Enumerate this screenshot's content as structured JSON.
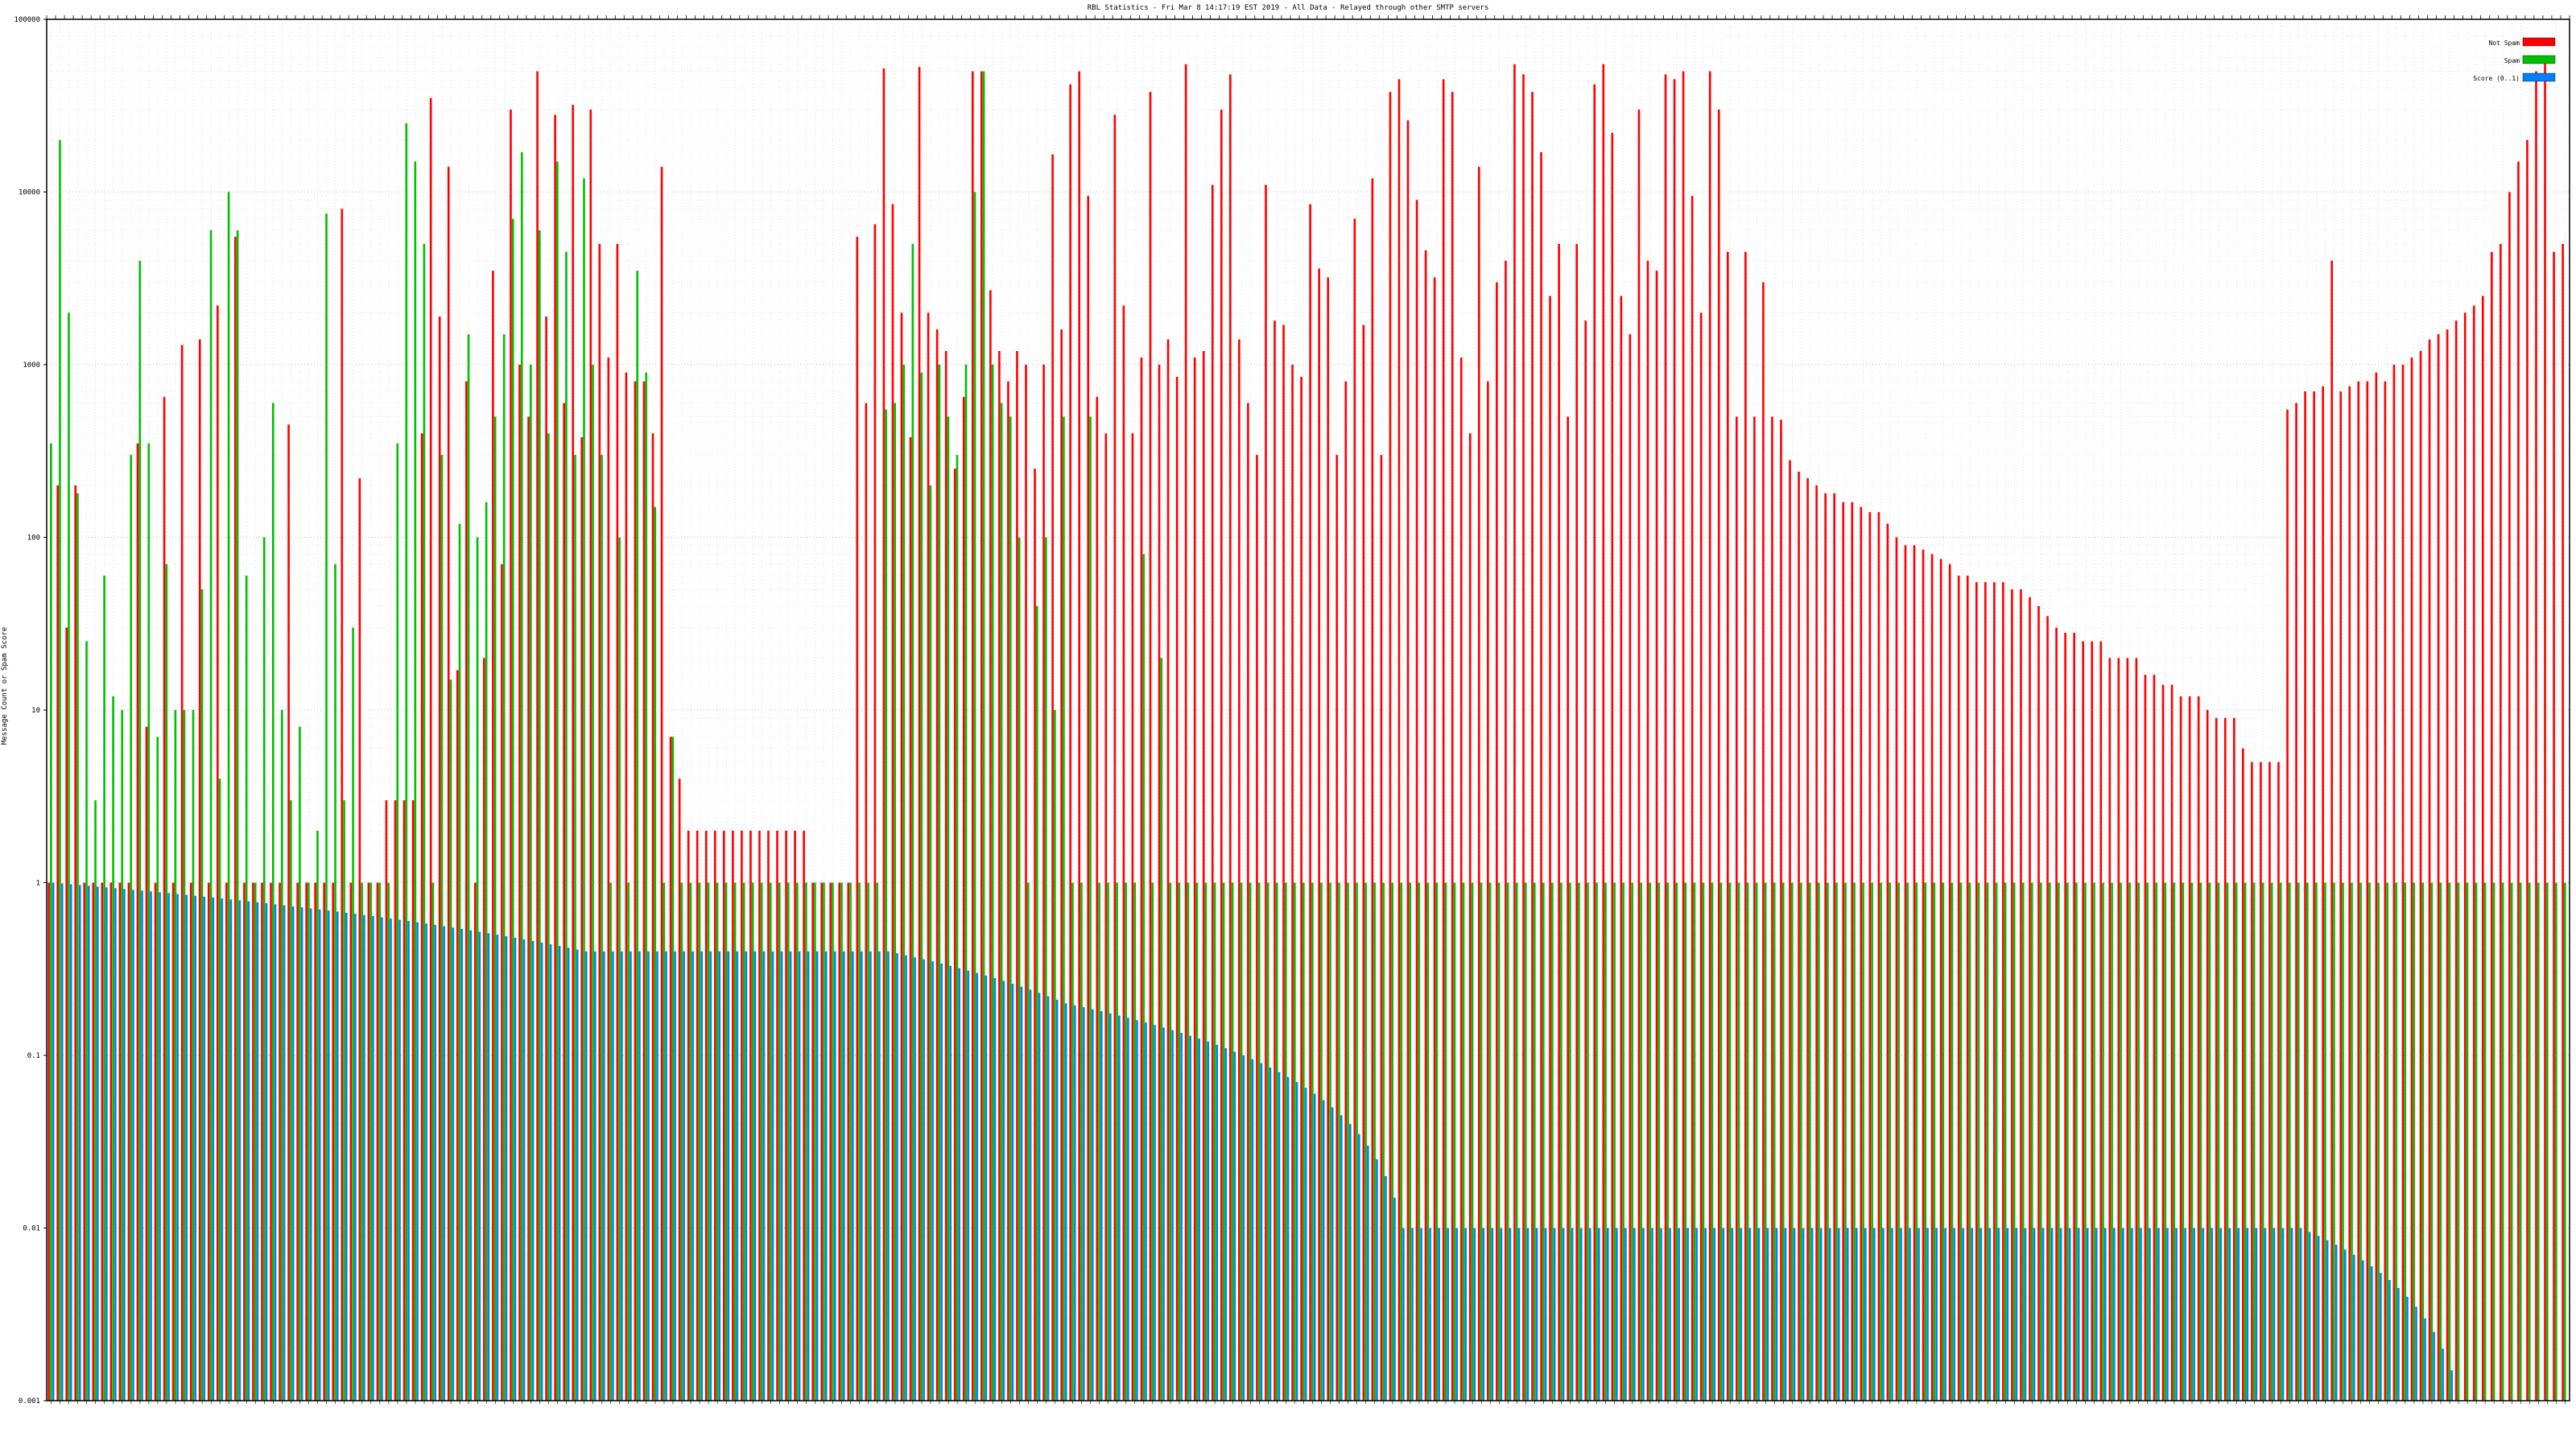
{
  "chart_data": {
    "type": "bar",
    "title": "RBL Statistics - Fri Mar  8 14:17:19 EST 2019 - All Data - Relayed through other SMTP servers",
    "ylabel": "Message Count or Spam Score",
    "xlabel": "",
    "yscale": "log",
    "ylim": [
      0.001,
      100000
    ],
    "yticks": [
      {
        "value": 0.001,
        "label": "0.001"
      },
      {
        "value": 0.01,
        "label": "0.01"
      },
      {
        "value": 0.1,
        "label": "0.1"
      },
      {
        "value": 1,
        "label": "1"
      },
      {
        "value": 10,
        "label": "10"
      },
      {
        "value": 100,
        "label": "100"
      },
      {
        "value": 1000,
        "label": "1000"
      },
      {
        "value": 10000,
        "label": "10000"
      },
      {
        "value": 100000,
        "label": "100000"
      }
    ],
    "grid": true,
    "legend": "top-right",
    "categories_note": "category labels are too small to read in the source image",
    "series": [
      {
        "name": "Not Spam",
        "color": "#ff0000",
        "values": [
          1,
          200,
          30,
          200,
          1,
          1,
          1,
          1,
          1,
          1,
          350,
          8,
          1,
          650,
          1,
          1300,
          1,
          1400,
          1,
          2200,
          1,
          5500,
          1,
          1,
          1,
          1,
          1,
          450,
          1,
          1,
          1,
          1,
          1,
          8000,
          1,
          220,
          1,
          1,
          3,
          3,
          3,
          3,
          400,
          35000,
          1900,
          14000,
          17,
          800,
          1,
          20,
          3500,
          70,
          30000,
          1000,
          500,
          50000,
          1900,
          28000,
          600,
          32000,
          380,
          30000,
          5000,
          1100,
          5000,
          900,
          800,
          800,
          400,
          14000,
          7,
          4,
          2,
          2,
          2,
          2,
          2,
          2,
          2,
          2,
          2,
          2,
          2,
          2,
          2,
          2,
          1,
          1,
          1,
          1,
          1,
          5500,
          600,
          6500,
          52000,
          8500,
          2000,
          380,
          53000,
          2000,
          1600,
          1200,
          250,
          650,
          50000,
          50000,
          2700,
          1200,
          800,
          1200,
          1000,
          250,
          1000,
          16500,
          1600,
          42000,
          50000,
          9500,
          650,
          400,
          28000,
          2200,
          400,
          1100,
          38000,
          1000,
          1400,
          850,
          55000,
          1100,
          1200,
          11000,
          30000,
          48000,
          1400,
          600,
          300,
          11000,
          1800,
          1700,
          1000,
          850,
          8500,
          3600,
          3200,
          300,
          800,
          7000,
          1700,
          12000,
          300,
          38000,
          45000,
          26000,
          9000,
          4600,
          3200,
          45000,
          38000,
          1100,
          400,
          14000,
          800,
          3000,
          4000,
          55000,
          48000,
          38000,
          17000,
          2500,
          5000,
          500,
          5000,
          1800,
          42000,
          55000,
          22000,
          2500,
          1500,
          30000,
          4000,
          3500,
          48000,
          45000,
          50000,
          9500,
          2000,
          50000,
          30000,
          4500,
          500,
          4500,
          500,
          3000,
          500,
          480,
          280,
          240,
          220,
          200,
          180,
          180,
          160,
          160,
          150,
          140,
          140,
          120,
          100,
          90,
          90,
          85,
          80,
          75,
          70,
          60,
          60,
          55,
          55,
          55,
          55,
          50,
          50,
          45,
          40,
          35,
          30,
          28,
          28,
          25,
          25,
          25,
          20,
          20,
          20,
          20,
          16,
          16,
          14,
          14,
          12,
          12,
          12,
          10,
          9,
          9,
          9,
          6,
          5,
          5,
          5,
          5,
          550,
          600,
          700,
          700,
          750,
          4000,
          700,
          750,
          800,
          800,
          900,
          800,
          1000,
          1000,
          1100,
          1200,
          1400,
          1500,
          1600,
          1800,
          2000,
          2200,
          2500,
          4500,
          5000,
          10000,
          15000,
          20000,
          50000,
          60000,
          4500,
          5000
        ]
      },
      {
        "name": "Spam",
        "color": "#00c000",
        "values": [
          350,
          20000,
          2000,
          180,
          25,
          3,
          60,
          12,
          10,
          300,
          4000,
          350,
          7,
          70,
          10,
          10,
          10,
          50,
          6000,
          4,
          10000,
          6000,
          60,
          1,
          100,
          600,
          10,
          3,
          8,
          1,
          2,
          7500,
          70,
          3,
          30,
          1,
          1,
          1,
          1,
          350,
          25000,
          15000,
          5000,
          1,
          300,
          15,
          120,
          1500,
          100,
          160,
          500,
          1500,
          7000,
          17000,
          1000,
          6000,
          400,
          15000,
          4500,
          300,
          12000,
          1000,
          300,
          1,
          100,
          1,
          3500,
          900,
          150,
          1,
          7,
          1,
          1,
          1,
          1,
          1,
          1,
          1,
          1,
          1,
          1,
          1,
          1,
          1,
          1,
          1,
          1,
          1,
          1,
          1,
          1,
          1,
          1,
          1,
          550,
          600,
          1000,
          5000,
          900,
          200,
          1000,
          500,
          300,
          1000,
          10000,
          50000,
          1000,
          600,
          500,
          100,
          1,
          40,
          100,
          10,
          500,
          1,
          1,
          500,
          1,
          1,
          1,
          1,
          1,
          80,
          1,
          20,
          1,
          1,
          1,
          1,
          1,
          1,
          1,
          1,
          1,
          1,
          1,
          1,
          1,
          1,
          1,
          1,
          1,
          1,
          1,
          1,
          1,
          1,
          1,
          1,
          1,
          1,
          1,
          1,
          1,
          1,
          1,
          1,
          1,
          1,
          1,
          1,
          1,
          1,
          1,
          1,
          1,
          1,
          1,
          1,
          1,
          1,
          1,
          1,
          1,
          1,
          1,
          1,
          1,
          1,
          1,
          1,
          1,
          1,
          1,
          1,
          1,
          1,
          1,
          1,
          1,
          1,
          1,
          1,
          1,
          1,
          1,
          1,
          1,
          1,
          1,
          1,
          1,
          1,
          1,
          1,
          1,
          1,
          1,
          1,
          1,
          1,
          1,
          1,
          1,
          1,
          1,
          1,
          1,
          1,
          1,
          1,
          1,
          1,
          1,
          1,
          1,
          1,
          1,
          1,
          1,
          1,
          1,
          1,
          1,
          1,
          1,
          1,
          1,
          1,
          1,
          1,
          1,
          1,
          1,
          1,
          1,
          1,
          1,
          1,
          1,
          1,
          1,
          1,
          1,
          1,
          1,
          1,
          1,
          1,
          1,
          1,
          1,
          1,
          1,
          1,
          1,
          1,
          1,
          1,
          1,
          1,
          1,
          1,
          1,
          1,
          1,
          1,
          1,
          1,
          1,
          1,
          1,
          1,
          1,
          1,
          1,
          1,
          1,
          1,
          1,
          1,
          1,
          1,
          1,
          1,
          1,
          1,
          1,
          1,
          1,
          1,
          1,
          1,
          1,
          1,
          1,
          1,
          1,
          1,
          1,
          1,
          1,
          1,
          1
        ]
      },
      {
        "name": "Score (0..1)",
        "color": "#0080ff",
        "values": [
          1,
          0.99,
          0.98,
          0.97,
          0.96,
          0.95,
          0.94,
          0.93,
          0.92,
          0.91,
          0.9,
          0.89,
          0.88,
          0.87,
          0.86,
          0.85,
          0.84,
          0.83,
          0.82,
          0.81,
          0.8,
          0.79,
          0.78,
          0.77,
          0.76,
          0.75,
          0.74,
          0.73,
          0.72,
          0.71,
          0.7,
          0.69,
          0.68,
          0.67,
          0.66,
          0.65,
          0.64,
          0.63,
          0.62,
          0.61,
          0.6,
          0.59,
          0.58,
          0.57,
          0.56,
          0.55,
          0.54,
          0.53,
          0.52,
          0.51,
          0.5,
          0.49,
          0.48,
          0.47,
          0.46,
          0.45,
          0.44,
          0.43,
          0.42,
          0.41,
          0.4,
          0.4,
          0.4,
          0.4,
          0.4,
          0.4,
          0.4,
          0.4,
          0.4,
          0.4,
          0.4,
          0.4,
          0.4,
          0.4,
          0.4,
          0.4,
          0.4,
          0.4,
          0.4,
          0.4,
          0.4,
          0.4,
          0.4,
          0.4,
          0.4,
          0.4,
          0.4,
          0.4,
          0.4,
          0.4,
          0.4,
          0.4,
          0.4,
          0.4,
          0.4,
          0.39,
          0.38,
          0.37,
          0.36,
          0.35,
          0.34,
          0.33,
          0.32,
          0.31,
          0.3,
          0.29,
          0.28,
          0.27,
          0.26,
          0.25,
          0.24,
          0.23,
          0.22,
          0.21,
          0.2,
          0.195,
          0.19,
          0.185,
          0.18,
          0.175,
          0.17,
          0.165,
          0.16,
          0.155,
          0.15,
          0.145,
          0.14,
          0.135,
          0.13,
          0.125,
          0.12,
          0.115,
          0.11,
          0.105,
          0.1,
          0.095,
          0.09,
          0.085,
          0.08,
          0.075,
          0.07,
          0.065,
          0.06,
          0.055,
          0.05,
          0.045,
          0.04,
          0.035,
          0.03,
          0.025,
          0.02,
          0.015,
          0.01,
          0.01,
          0.01,
          0.01,
          0.01,
          0.01,
          0.01,
          0.01,
          0.01,
          0.01,
          0.01,
          0.01,
          0.01,
          0.01,
          0.01,
          0.01,
          0.01,
          0.01,
          0.01,
          0.01,
          0.01,
          0.01,
          0.01,
          0.01,
          0.01,
          0.01,
          0.01,
          0.01,
          0.01,
          0.01,
          0.01,
          0.01,
          0.01,
          0.01,
          0.01,
          0.01,
          0.01,
          0.01,
          0.01,
          0.01,
          0.01,
          0.01,
          0.01,
          0.01,
          0.01,
          0.01,
          0.01,
          0.01,
          0.01,
          0.01,
          0.01,
          0.01,
          0.01,
          0.01,
          0.01,
          0.01,
          0.01,
          0.01,
          0.01,
          0.01,
          0.01,
          0.01,
          0.01,
          0.01,
          0.01,
          0.01,
          0.01,
          0.01,
          0.01,
          0.01,
          0.01,
          0.01,
          0.01,
          0.01,
          0.01,
          0.01,
          0.01,
          0.01,
          0.01,
          0.01,
          0.01,
          0.01,
          0.01,
          0.01,
          0.01,
          0.01,
          0.01,
          0.01,
          0.01,
          0.01,
          0.01,
          0.01,
          0.01,
          0.01,
          0.01,
          0.01,
          0.01,
          0.01,
          0.01,
          0.01,
          0.01,
          0.01,
          0.0095,
          0.009,
          0.0085,
          0.008,
          0.0075,
          0.007,
          0.0065,
          0.006,
          0.0055,
          0.005,
          0.0045,
          0.004,
          0.0035,
          0.003,
          0.0025,
          0.002,
          0.0015,
          0.001
        ]
      }
    ]
  }
}
